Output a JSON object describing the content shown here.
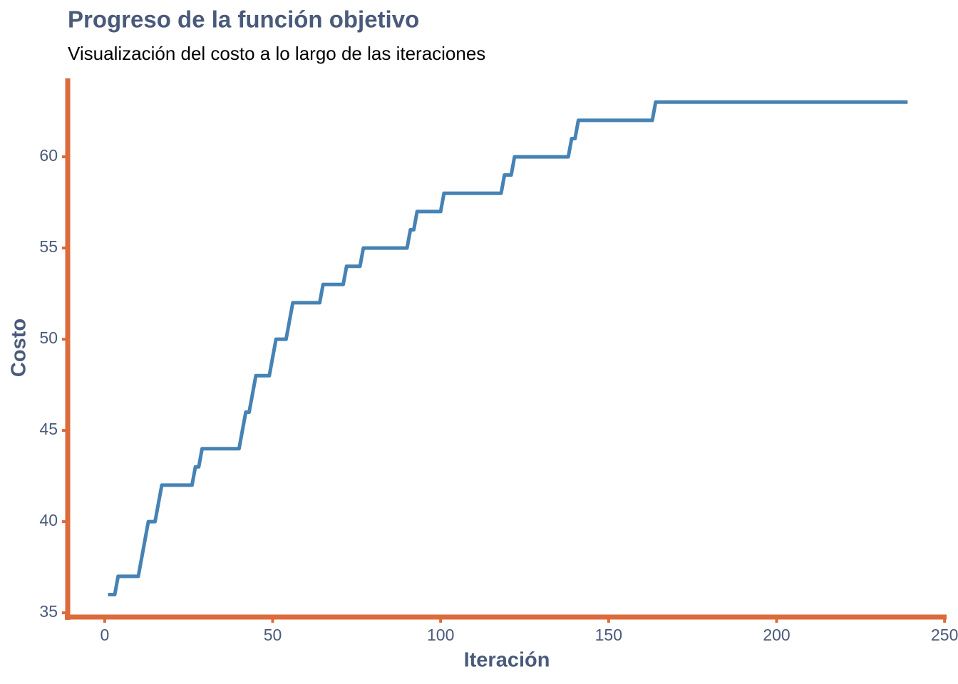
{
  "chart_data": {
    "type": "line",
    "title": "Progreso de la función objetivo",
    "subtitle": "Visualización del costo a lo largo de las iteraciones",
    "x_label": "Iteración",
    "y_label": "Costo",
    "x": [
      1,
      3,
      4,
      10,
      13,
      15,
      17,
      26,
      27,
      28,
      29,
      40,
      42,
      43,
      45,
      49,
      51,
      54,
      56,
      64,
      65,
      71,
      72,
      76,
      77,
      90,
      91,
      92,
      93,
      100,
      101,
      118,
      119,
      121,
      122,
      138,
      139,
      140,
      141,
      163,
      164,
      239
    ],
    "series": [
      {
        "name": "Costo",
        "color": "#4682b4",
        "values": [
          36,
          36,
          37,
          37,
          40,
          40,
          42,
          42,
          43,
          43,
          44,
          44,
          46,
          46,
          48,
          48,
          50,
          50,
          52,
          52,
          53,
          53,
          54,
          54,
          55,
          55,
          56,
          56,
          57,
          57,
          58,
          58,
          59,
          59,
          60,
          60,
          61,
          61,
          62,
          62,
          63,
          63
        ]
      }
    ],
    "xlim": [
      -11,
      250.6
    ],
    "ylim": [
      34.77,
      64.3
    ],
    "xticks": [
      0,
      50,
      100,
      150,
      200,
      250
    ],
    "yticks": [
      35,
      40,
      45,
      50,
      55,
      60
    ],
    "axis_color": "#db6b3c"
  }
}
